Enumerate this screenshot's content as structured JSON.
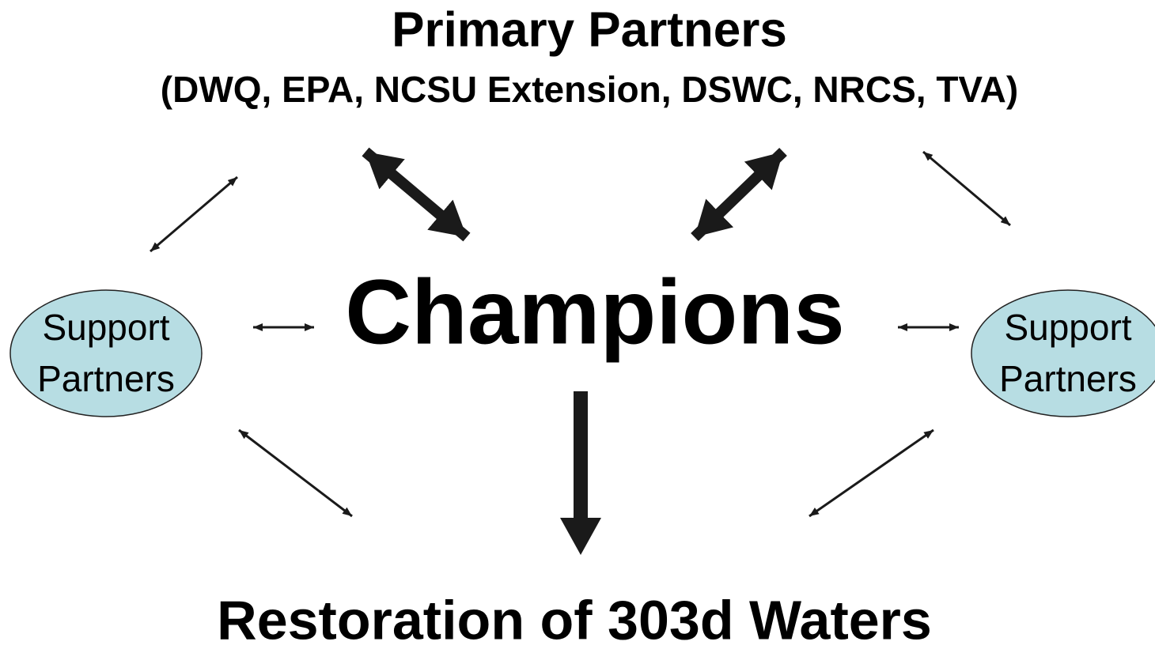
{
  "title": "Primary Partners",
  "subtitle": "(DWQ, EPA, NCSU Extension, DSWC, NRCS, TVA)",
  "center": "Champions",
  "left_node": {
    "lines": [
      "Support",
      "Partners"
    ]
  },
  "right_node": {
    "lines": [
      "Support",
      "Partners"
    ]
  },
  "outcome": "Restoration of 303d Waters"
}
